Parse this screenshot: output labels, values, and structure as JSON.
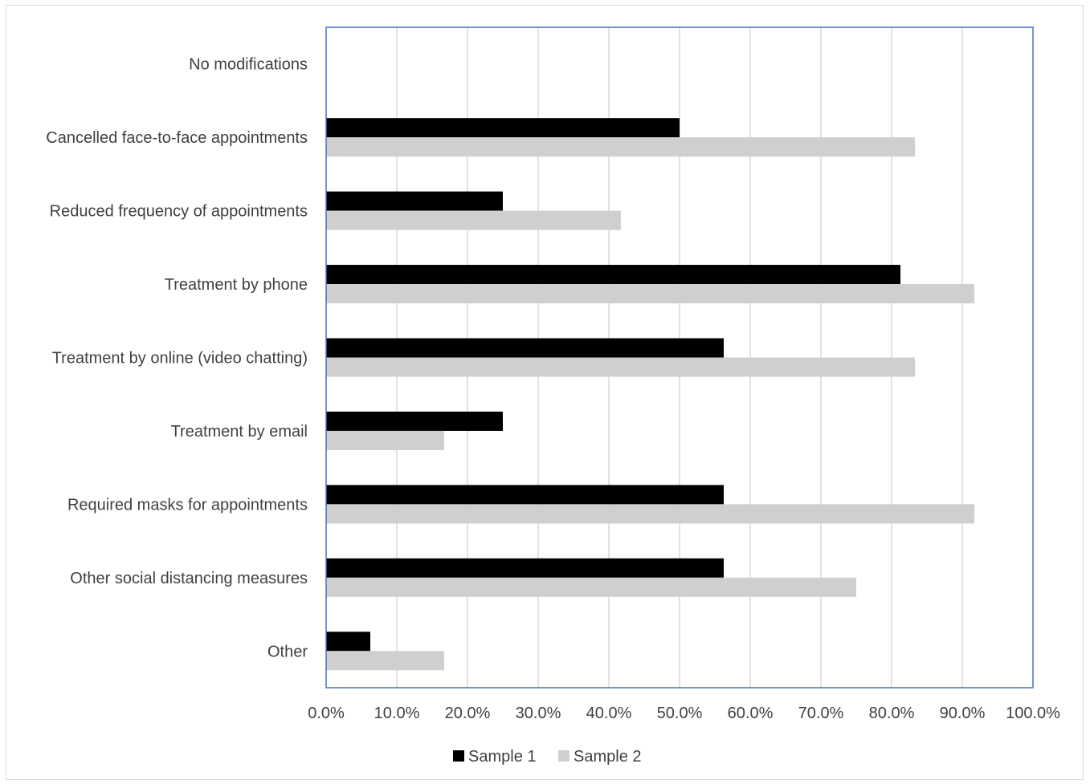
{
  "chart_data": {
    "type": "bar",
    "orientation": "horizontal",
    "title": "",
    "xlabel": "",
    "ylabel": "",
    "categories": [
      "No modifications",
      "Cancelled face-to-face appointments",
      "Reduced frequency of appointments",
      "Treatment by phone",
      "Treatment by online (video chatting)",
      "Treatment by email",
      "Required masks for appointments",
      "Other social distancing measures",
      "Other"
    ],
    "series": [
      {
        "name": "Sample 1",
        "color": "#000000",
        "values": [
          0,
          50.0,
          25.0,
          81.25,
          56.25,
          25.0,
          56.25,
          56.25,
          6.25
        ]
      },
      {
        "name": "Sample 2",
        "color": "#d0cece",
        "values": [
          0,
          83.3,
          41.7,
          91.7,
          83.3,
          16.7,
          91.7,
          75.0,
          16.7
        ]
      }
    ],
    "xlim": [
      0,
      100
    ],
    "x_ticks": [
      "0.0%",
      "10.0%",
      "20.0%",
      "30.0%",
      "40.0%",
      "50.0%",
      "60.0%",
      "70.0%",
      "80.0%",
      "90.0%",
      "100.0%"
    ],
    "grid": "vertical",
    "legend_position": "bottom",
    "plot_border_color": "#4472c4",
    "gridline_color": "#d9d9d9"
  }
}
